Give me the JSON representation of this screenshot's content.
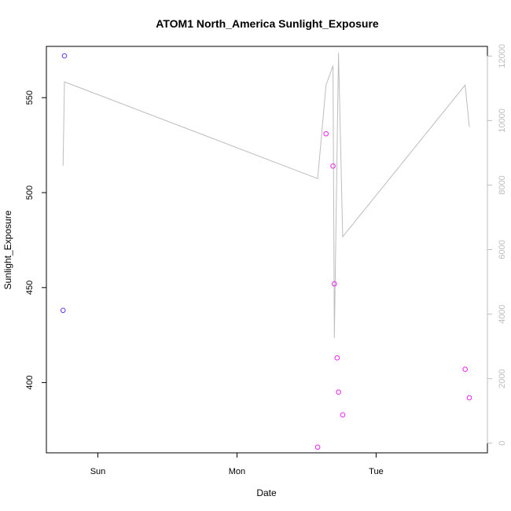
{
  "chart_data": {
    "type": "scatter",
    "title": "ATOM1 North_America Sunlight_Exposure",
    "xlabel": "Date",
    "ylabel": "Sunlight_Exposure",
    "x_axis": {
      "range_days": [
        -0.37,
        2.8
      ],
      "ticks": [
        {
          "label": "Sun",
          "day": 0
        },
        {
          "label": "Mon",
          "day": 1
        },
        {
          "label": "Tue",
          "day": 2
        }
      ]
    },
    "ylim": [
      363,
      577
    ],
    "yticks": [
      400,
      450,
      500,
      550
    ],
    "y2lim": [
      -300,
      12300
    ],
    "y2ticks": [
      0,
      2000,
      4000,
      6000,
      8000,
      10000,
      12000
    ],
    "points": [
      {
        "day": -0.25,
        "y": 438,
        "color": "#6633ff"
      },
      {
        "day": -0.24,
        "y": 572,
        "color": "#6633ff"
      },
      {
        "day": 1.58,
        "y": 366,
        "color": "#ee22ee"
      },
      {
        "day": 1.64,
        "y": 531,
        "color": "#ee22ee"
      },
      {
        "day": 1.69,
        "y": 514,
        "color": "#ee22ee"
      },
      {
        "day": 1.7,
        "y": 452,
        "color": "#ee22ee"
      },
      {
        "day": 1.72,
        "y": 413,
        "color": "#ee22ee"
      },
      {
        "day": 1.73,
        "y": 395,
        "color": "#ee22ee"
      },
      {
        "day": 1.76,
        "y": 383,
        "color": "#ee22ee"
      },
      {
        "day": 2.64,
        "y": 407,
        "color": "#ee22ee"
      },
      {
        "day": 2.67,
        "y": 392,
        "color": "#ee22ee"
      }
    ],
    "line_right_axis": {
      "color": "#bdbdbd",
      "points": [
        {
          "day": -0.25,
          "y": 8600
        },
        {
          "day": -0.24,
          "y": 11200
        },
        {
          "day": 1.58,
          "y": 8200
        },
        {
          "day": 1.64,
          "y": 11100
        },
        {
          "day": 1.69,
          "y": 11700
        },
        {
          "day": 1.7,
          "y": 3250
        },
        {
          "day": 1.73,
          "y": 12100
        },
        {
          "day": 1.76,
          "y": 6400
        },
        {
          "day": 2.64,
          "y": 11100
        },
        {
          "day": 2.67,
          "y": 9800
        }
      ]
    },
    "colors": {
      "axis": "#000000",
      "right_axis": "#bdbdbd"
    }
  }
}
